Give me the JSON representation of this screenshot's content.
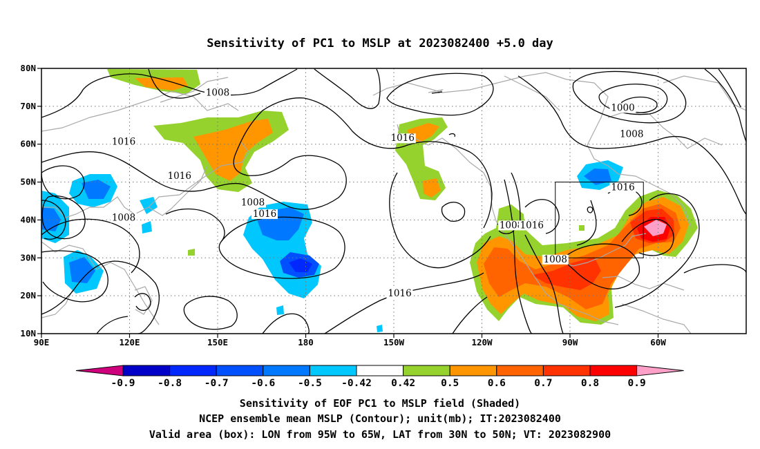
{
  "title": "Sensitivity of PC1 to MSLP at 2023082400 +5.0 day",
  "map": {
    "lon_labels": [
      "90E",
      "120E",
      "150E",
      "180",
      "150W",
      "120W",
      "90W",
      "60W"
    ],
    "lat_labels": [
      "10N",
      "20N",
      "30N",
      "40N",
      "50N",
      "60N",
      "70N",
      "80N"
    ],
    "lon_range": [
      90,
      330
    ],
    "lat_range": [
      10,
      80
    ],
    "grid": true,
    "valid_box": {
      "lon": [
        265,
        295
      ],
      "lat": [
        30,
        50
      ]
    }
  },
  "contour_labels": [
    {
      "text": "1008",
      "lon": 150,
      "lat": 73
    },
    {
      "text": "1016",
      "lon": 118,
      "lat": 60
    },
    {
      "text": "1016",
      "lon": 137,
      "lat": 51
    },
    {
      "text": "1008",
      "lon": 118,
      "lat": 40
    },
    {
      "text": "1008",
      "lon": 162,
      "lat": 44
    },
    {
      "text": "1016",
      "lon": 166,
      "lat": 41
    },
    {
      "text": "1016",
      "lon": 213,
      "lat": 61
    },
    {
      "text": "1016",
      "lon": 212,
      "lat": 20
    },
    {
      "text": "1000",
      "lon": 288,
      "lat": 69
    },
    {
      "text": "1008",
      "lon": 291,
      "lat": 62
    },
    {
      "text": "1016",
      "lon": 288,
      "lat": 48
    },
    {
      "text": "1008",
      "lon": 250,
      "lat": 38
    },
    {
      "text": "1016",
      "lon": 257,
      "lat": 38
    },
    {
      "text": "1008",
      "lon": 265,
      "lat": 29
    }
  ],
  "colorbar": {
    "colors": [
      "#ce007c",
      "#0000c8",
      "#0028ff",
      "#0050ff",
      "#0078ff",
      "#00c8ff",
      "#ffffff",
      "#96d22d",
      "#ff9600",
      "#ff6400",
      "#ff3200",
      "#ff0000",
      "#ffa0c8"
    ],
    "labels": [
      "-0.9",
      "-0.8",
      "-0.7",
      "-0.6",
      "-0.5",
      "-0.42",
      "0.42",
      "0.5",
      "0.6",
      "0.7",
      "0.8",
      "0.9"
    ]
  },
  "captions": [
    "Sensitivity of EOF PC1 to MSLP field (Shaded)",
    "NCEP ensemble mean MSLP (Contour); unit(mb); IT:2023082400",
    "Valid area (box): LON from 95W to 65W, LAT from 30N to 50N; VT: 2023082900"
  ]
}
